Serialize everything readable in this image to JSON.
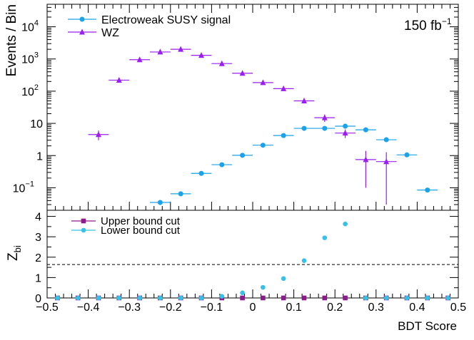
{
  "chart_data": [
    {
      "type": "scatter",
      "panel": "top",
      "ylabel": "Events / Bin",
      "xlabel": "",
      "yscale": "log",
      "ylim": [
        0.02,
        50000
      ],
      "xlim": [
        -0.5,
        0.5
      ],
      "annotation": {
        "base": "150 fb",
        "sup": "−1"
      },
      "y_ticks": [
        {
          "v": 0.1,
          "label": "10",
          "sup": "−1"
        },
        {
          "v": 1,
          "label": "1",
          "sup": ""
        },
        {
          "v": 10,
          "label": "10",
          "sup": ""
        },
        {
          "v": 100,
          "label": "10",
          "sup": "2"
        },
        {
          "v": 1000,
          "label": "10",
          "sup": "3"
        },
        {
          "v": 10000,
          "label": "10",
          "sup": "4"
        }
      ],
      "legend": {
        "placement": "top-left"
      },
      "series": [
        {
          "name": "Electroweak SUSY signal",
          "color": "#1aa3e8",
          "marker": "circle",
          "x": [
            -0.225,
            -0.175,
            -0.125,
            -0.075,
            -0.025,
            0.025,
            0.075,
            0.125,
            0.175,
            0.225,
            0.275,
            0.325,
            0.375,
            0.425
          ],
          "y": [
            0.035,
            0.065,
            0.28,
            0.52,
            1.02,
            2.1,
            4.2,
            7.0,
            7.0,
            8.2,
            6.3,
            3.1,
            1.05,
            0.085
          ],
          "yerr_low": [
            0.006,
            0.008,
            0.03,
            0.05,
            0.08,
            0.12,
            0.2,
            0.3,
            0.3,
            0.35,
            0.3,
            0.2,
            0.08,
            0.008
          ],
          "yerr_high": [
            0.006,
            0.008,
            0.03,
            0.05,
            0.08,
            0.12,
            0.2,
            0.3,
            0.3,
            0.35,
            0.3,
            0.2,
            0.08,
            0.008
          ]
        },
        {
          "name": "WZ",
          "color": "#9b1ff0",
          "marker": "triangle",
          "x": [
            -0.375,
            -0.325,
            -0.275,
            -0.225,
            -0.175,
            -0.125,
            -0.075,
            -0.025,
            0.025,
            0.075,
            0.125,
            0.175,
            0.225,
            0.275,
            0.325
          ],
          "y": [
            4.5,
            220,
            950,
            1650,
            2000,
            1300,
            720,
            360,
            185,
            120,
            50,
            15,
            5,
            0.75,
            0.65
          ],
          "yerr_low": [
            1.5,
            15,
            30,
            40,
            45,
            36,
            27,
            19,
            14,
            11,
            7,
            3.9,
            1.5,
            0.65,
            0.62
          ],
          "yerr_high": [
            1.5,
            15,
            30,
            40,
            45,
            36,
            27,
            19,
            14,
            11,
            7,
            3.9,
            1.5,
            0.65,
            0.62
          ]
        }
      ]
    },
    {
      "type": "scatter",
      "panel": "bottom",
      "xlabel": "BDT Score",
      "ylabel": "Z",
      "ylabel_sub": "bi",
      "ylim": [
        0,
        4.3
      ],
      "xlim": [
        -0.5,
        0.5
      ],
      "x_ticks": [
        -0.5,
        -0.4,
        -0.3,
        -0.2,
        -0.1,
        0,
        0.1,
        0.2,
        0.3,
        0.4,
        0.5
      ],
      "y_ticks": [
        0,
        1,
        2,
        3,
        4
      ],
      "reference_line": {
        "y": 1.64,
        "style": "dashed"
      },
      "legend": {
        "placement": "top-left"
      },
      "series": [
        {
          "name": "Upper bound cut",
          "color": "#8b1a8b",
          "marker": "square",
          "x": [
            -0.475,
            -0.425,
            -0.375,
            -0.325,
            -0.275,
            -0.225,
            -0.175,
            -0.125,
            -0.075,
            -0.025,
            0.025,
            0.075,
            0.125,
            0.175,
            0.225,
            0.275,
            0.325,
            0.375,
            0.425,
            0.475
          ],
          "y": [
            0,
            0,
            0,
            0,
            0,
            0,
            0,
            0,
            0,
            0,
            0,
            0,
            0,
            0,
            0,
            0,
            0,
            0,
            0,
            0
          ]
        },
        {
          "name": "Lower bound cut",
          "color": "#36c2e8",
          "marker": "circle",
          "x": [
            -0.475,
            -0.425,
            -0.375,
            -0.325,
            -0.275,
            -0.225,
            -0.175,
            -0.125,
            -0.075,
            -0.025,
            0.025,
            0.075,
            0.125,
            0.175,
            0.225,
            0.275,
            0.325,
            0.375,
            0.425,
            0.475
          ],
          "y": [
            0,
            0,
            0,
            0,
            0,
            0,
            0,
            0,
            0.08,
            0.25,
            0.52,
            0.95,
            1.83,
            2.95,
            3.63,
            0,
            0,
            0,
            0,
            0
          ]
        }
      ]
    }
  ]
}
